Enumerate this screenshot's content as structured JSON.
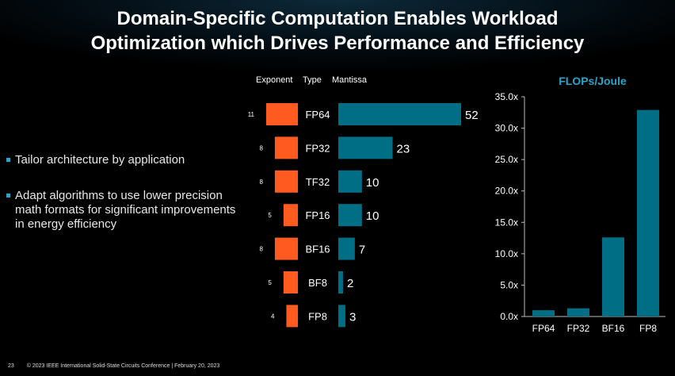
{
  "slide": {
    "title_line1": "Domain-Specific Computation Enables Workload",
    "title_line2": "Optimization which Drives Performance and Efficiency",
    "bullets": [
      "Tailor architecture by application",
      "Adapt algorithms to use lower precision math formats for significant improvements in energy efficiency"
    ],
    "footer": {
      "page_number": "23",
      "text": "© 2023 IEEE International Solid-State Circuits Conference  |  February 20, 2023"
    }
  },
  "colors": {
    "exponent": "#ff5a1f",
    "mantissa": "#006f86",
    "accent": "#2aa4c8"
  },
  "chart_data": [
    {
      "type": "bar",
      "orientation": "horizontal",
      "headers": {
        "exponent": "Exponent",
        "type": "Type",
        "mantissa": "Mantissa"
      },
      "categories": [
        "FP64",
        "FP32",
        "TF32",
        "FP16",
        "BF16",
        "BF8",
        "FP8"
      ],
      "series": [
        {
          "name": "Exponent",
          "values": [
            11,
            8,
            8,
            5,
            8,
            5,
            4
          ]
        },
        {
          "name": "Mantissa",
          "values": [
            52,
            23,
            10,
            10,
            7,
            2,
            3
          ]
        }
      ]
    },
    {
      "type": "bar",
      "title": "FLOPs/Joule",
      "categories": [
        "FP64",
        "FP32",
        "BF16",
        "FP8"
      ],
      "values": [
        1.0,
        1.3,
        12.6,
        32.9
      ],
      "ylim": [
        0,
        35
      ],
      "yticks": [
        "0.0x",
        "5.0x",
        "10.0x",
        "15.0x",
        "20.0x",
        "25.0x",
        "30.0x",
        "35.0x"
      ],
      "grid": false
    }
  ]
}
